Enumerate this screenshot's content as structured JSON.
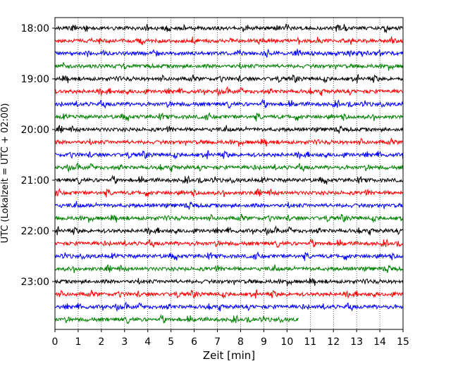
{
  "chart_data": {
    "type": "line",
    "title": "",
    "xlabel": "Zeit  [min]",
    "ylabel": "UTC (Lokalzeit = UTC + 02:00)",
    "xlim": [
      0,
      15
    ],
    "x_ticks": [
      "0",
      "1",
      "2",
      "3",
      "4",
      "5",
      "6",
      "7",
      "8",
      "9",
      "10",
      "11",
      "12",
      "13",
      "14",
      "15"
    ],
    "y_ticks": [
      "18:00",
      "19:00",
      "20:00",
      "21:00",
      "22:00",
      "23:00"
    ],
    "grid": "vertical dotted",
    "trace_colors": [
      "#000000",
      "#ff0000",
      "#0000ff",
      "#008000"
    ],
    "traces": [
      {
        "start": "18:00",
        "end_min": 15
      },
      {
        "start": "18:15",
        "end_min": 15
      },
      {
        "start": "18:30",
        "end_min": 15
      },
      {
        "start": "18:45",
        "end_min": 15
      },
      {
        "start": "19:00",
        "end_min": 15
      },
      {
        "start": "19:15",
        "end_min": 15
      },
      {
        "start": "19:30",
        "end_min": 15
      },
      {
        "start": "19:45",
        "end_min": 15
      },
      {
        "start": "20:00",
        "end_min": 15
      },
      {
        "start": "20:15",
        "end_min": 15
      },
      {
        "start": "20:30",
        "end_min": 15
      },
      {
        "start": "20:45",
        "end_min": 15
      },
      {
        "start": "21:00",
        "end_min": 15
      },
      {
        "start": "21:15",
        "end_min": 15
      },
      {
        "start": "21:30",
        "end_min": 15
      },
      {
        "start": "21:45",
        "end_min": 15
      },
      {
        "start": "22:00",
        "end_min": 15
      },
      {
        "start": "22:15",
        "end_min": 15
      },
      {
        "start": "22:30",
        "end_min": 15
      },
      {
        "start": "22:45",
        "end_min": 15
      },
      {
        "start": "23:00",
        "end_min": 15
      },
      {
        "start": "23:15",
        "end_min": 15
      },
      {
        "start": "23:30",
        "end_min": 15
      },
      {
        "start": "23:45",
        "end_min": 10.5
      }
    ]
  }
}
